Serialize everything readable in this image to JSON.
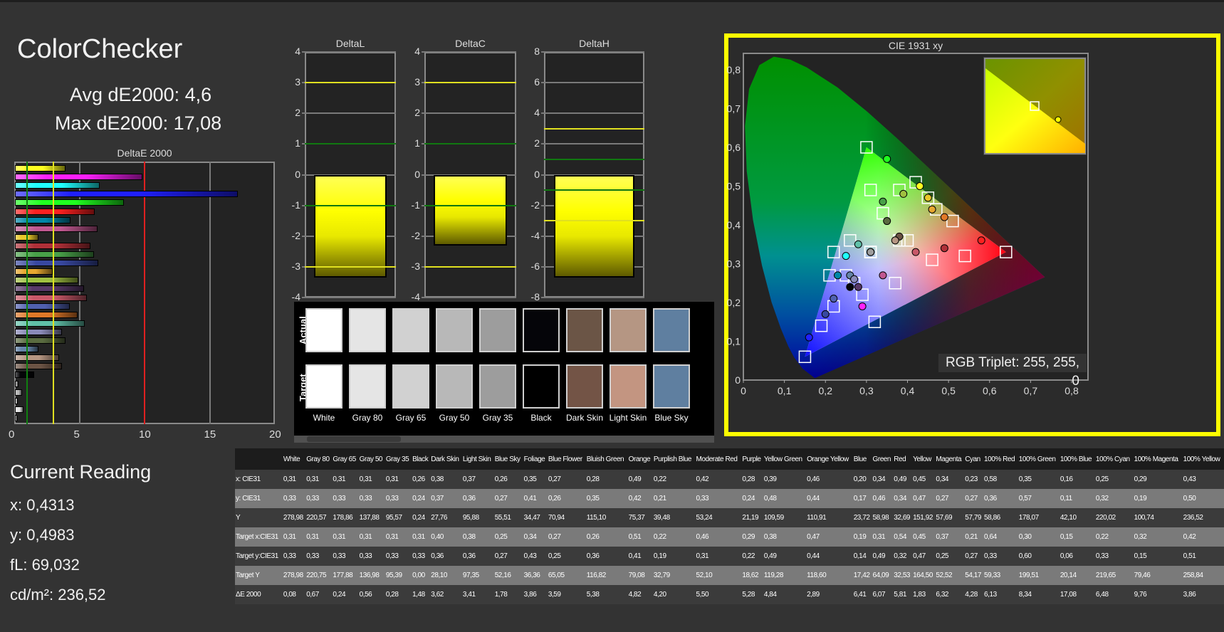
{
  "header": {
    "title": "ColorChecker",
    "avg": "Avg dE2000: 4,6",
    "max": "Max dE2000: 17,08"
  },
  "deltae_chart": {
    "title": "DeltaE 2000",
    "x_ticks": [
      "0",
      "5",
      "10",
      "15",
      "20"
    ],
    "xlim": [
      0,
      20
    ],
    "threshold_green": 1,
    "threshold_yellow": 3,
    "threshold_red": 10
  },
  "delta_charts": [
    {
      "title": "DeltaL",
      "value": -3.35,
      "ylim": [
        -4,
        4
      ],
      "ticks": [
        "4",
        "3",
        "2",
        "1",
        "0",
        "-1",
        "-2",
        "-3",
        "-4"
      ],
      "tick_values": [
        4,
        3,
        2,
        1,
        0,
        -1,
        -2,
        -3,
        -4
      ],
      "green": [
        1,
        -1
      ],
      "yellow": [
        3,
        -3
      ]
    },
    {
      "title": "DeltaC",
      "value": -2.3,
      "ylim": [
        -4,
        4
      ],
      "ticks": [
        "4",
        "3",
        "2",
        "1",
        "0",
        "-1",
        "-2",
        "-3",
        "-4"
      ],
      "tick_values": [
        4,
        3,
        2,
        1,
        0,
        -1,
        -2,
        -3,
        -4
      ],
      "green": [
        1,
        -1
      ],
      "yellow": [
        3,
        -3
      ]
    },
    {
      "title": "DeltaH",
      "value": -6.7,
      "ylim": [
        -8,
        8
      ],
      "ticks": [
        "8",
        "6",
        "4",
        "2",
        "0",
        "-2",
        "-4",
        "-6",
        "-8"
      ],
      "tick_values": [
        8,
        6,
        4,
        2,
        0,
        -2,
        -4,
        -6,
        -8
      ],
      "green": [
        1,
        -1
      ],
      "yellow": [
        3,
        -3
      ]
    }
  ],
  "swatches": {
    "actual_label": "Actual",
    "target_label": "Target",
    "items": [
      {
        "name": "White",
        "actual": "#ffffff",
        "target": "#ffffff"
      },
      {
        "name": "Gray 80",
        "actual": "#e5e5e5",
        "target": "#e5e5e5"
      },
      {
        "name": "Gray 65",
        "actual": "#d1d1d1",
        "target": "#d1d1d1"
      },
      {
        "name": "Gray 50",
        "actual": "#b8b8b8",
        "target": "#b8b8b8"
      },
      {
        "name": "Gray 35",
        "actual": "#9d9d9d",
        "target": "#9d9d9d"
      },
      {
        "name": "Black",
        "actual": "#050509",
        "target": "#000000"
      },
      {
        "name": "Dark Skin",
        "actual": "#6b5546",
        "target": "#735446"
      },
      {
        "name": "Light Skin",
        "actual": "#b59683",
        "target": "#c39581"
      },
      {
        "name": "Blue Sky",
        "actual": "#5f7fa0",
        "target": "#5f7fa0"
      }
    ]
  },
  "cie": {
    "title": "CIE 1931 xy",
    "x_ticks": [
      "0",
      "0,1",
      "0,2",
      "0,3",
      "0,4",
      "0,5",
      "0,6",
      "0,7",
      "0,8"
    ],
    "y_ticks": [
      "0",
      "0,1",
      "0,2",
      "0,3",
      "0,4",
      "0,5",
      "0,6",
      "0,7",
      "0,8"
    ],
    "xlim": [
      0,
      0.8
    ],
    "ylim": [
      0,
      0.8
    ],
    "gamut_primaries": [
      [
        0.64,
        0.33
      ],
      [
        0.3,
        0.6
      ],
      [
        0.15,
        0.06
      ]
    ],
    "rgb_triplet": "RGB Triplet: 255, 255, 0",
    "selected": "100% Yellow"
  },
  "current": {
    "title": "Current Reading",
    "x": "x: 0,4313",
    "y": "y: 0,4983",
    "fl": "fL: 69,032",
    "cdm2": "cd/m²: 236,52"
  },
  "table": {
    "columns": [
      "White",
      "Gray 80",
      "Gray 65",
      "Gray 50",
      "Gray 35",
      "Black",
      "Dark Skin",
      "Light Skin",
      "Blue Sky",
      "Foliage",
      "Blue Flower",
      "Bluish Green",
      "Orange",
      "Purplish Blue",
      "Moderate Red",
      "Purple",
      "Yellow Green",
      "Orange Yellow",
      "Blue",
      "Green",
      "Red",
      "Yellow",
      "Magenta",
      "Cyan",
      "100% Red",
      "100% Green",
      "100% Blue",
      "100% Cyan",
      "100% Magenta",
      "100% Yellow"
    ],
    "colors": [
      "#ffffff",
      "#e5e5e5",
      "#d0d0d0",
      "#b8b8b8",
      "#9e9e9e",
      "#050508",
      "#6b5344",
      "#b69682",
      "#6584a8",
      "#5a6b40",
      "#8a8ab8",
      "#60c0a8",
      "#e07828",
      "#5060b0",
      "#c85868",
      "#583868",
      "#a0c040",
      "#e8a830",
      "#3848a0",
      "#48a048",
      "#b03038",
      "#e8c828",
      "#c05890",
      "#0088a8",
      "#ff2020",
      "#20ff20",
      "#2020ff",
      "#20ffff",
      "#ff20ff",
      "#ffff20"
    ],
    "rows": [
      {
        "label": "x: CIE31",
        "values": [
          "0,31",
          "0,31",
          "0,31",
          "0,31",
          "0,31",
          "0,26",
          "0,38",
          "0,37",
          "0,26",
          "0,35",
          "0,27",
          "0,28",
          "0,49",
          "0,22",
          "0,42",
          "0,28",
          "0,39",
          "0,46",
          "0,20",
          "0,34",
          "0,49",
          "0,45",
          "0,34",
          "0,23",
          "0,58",
          "0,35",
          "0,16",
          "0,25",
          "0,29",
          "0,43"
        ]
      },
      {
        "label": "y: CIE31",
        "values": [
          "0,33",
          "0,33",
          "0,33",
          "0,33",
          "0,33",
          "0,24",
          "0,37",
          "0,36",
          "0,27",
          "0,41",
          "0,26",
          "0,35",
          "0,42",
          "0,21",
          "0,33",
          "0,24",
          "0,48",
          "0,44",
          "0,17",
          "0,46",
          "0,34",
          "0,47",
          "0,27",
          "0,27",
          "0,36",
          "0,57",
          "0,11",
          "0,32",
          "0,19",
          "0,50"
        ]
      },
      {
        "label": "Y",
        "values": [
          "278,98",
          "220,57",
          "178,86",
          "137,88",
          "95,57",
          "0,24",
          "27,76",
          "95,88",
          "55,51",
          "34,47",
          "70,94",
          "115,10",
          "75,37",
          "39,48",
          "53,24",
          "21,19",
          "109,59",
          "110,91",
          "23,72",
          "58,98",
          "32,69",
          "151,92",
          "57,69",
          "57,79",
          "58,86",
          "178,07",
          "42,10",
          "220,02",
          "100,74",
          "236,52"
        ]
      },
      {
        "label": "Target x:CIE31",
        "values": [
          "0,31",
          "0,31",
          "0,31",
          "0,31",
          "0,31",
          "0,31",
          "0,40",
          "0,38",
          "0,25",
          "0,34",
          "0,27",
          "0,26",
          "0,51",
          "0,22",
          "0,46",
          "0,29",
          "0,38",
          "0,47",
          "0,19",
          "0,31",
          "0,54",
          "0,45",
          "0,37",
          "0,21",
          "0,64",
          "0,30",
          "0,15",
          "0,22",
          "0,32",
          "0,42"
        ]
      },
      {
        "label": "Target y:CIE31",
        "values": [
          "0,33",
          "0,33",
          "0,33",
          "0,33",
          "0,33",
          "0,33",
          "0,36",
          "0,36",
          "0,27",
          "0,43",
          "0,25",
          "0,36",
          "0,41",
          "0,19",
          "0,31",
          "0,22",
          "0,49",
          "0,44",
          "0,14",
          "0,49",
          "0,32",
          "0,47",
          "0,25",
          "0,27",
          "0,33",
          "0,60",
          "0,06",
          "0,33",
          "0,15",
          "0,51"
        ]
      },
      {
        "label": "Target Y",
        "values": [
          "278,98",
          "220,75",
          "177,88",
          "136,98",
          "95,39",
          "0,00",
          "28,10",
          "97,35",
          "52,16",
          "36,36",
          "65,05",
          "116,82",
          "79,08",
          "32,79",
          "52,10",
          "18,62",
          "119,28",
          "118,60",
          "17,42",
          "64,09",
          "32,53",
          "164,50",
          "52,52",
          "54,17",
          "59,33",
          "199,51",
          "20,14",
          "219,65",
          "79,46",
          "258,84"
        ]
      },
      {
        "label": "ΔE 2000",
        "values": [
          "0,08",
          "0,67",
          "0,24",
          "0,56",
          "0,28",
          "1,48",
          "3,62",
          "3,41",
          "1,78",
          "3,86",
          "3,59",
          "5,38",
          "4,82",
          "4,20",
          "5,50",
          "5,28",
          "4,84",
          "2,89",
          "6,41",
          "6,07",
          "5,81",
          "1,83",
          "6,32",
          "4,28",
          "6,13",
          "8,34",
          "17,08",
          "6,48",
          "9,76",
          "3,86"
        ]
      }
    ]
  }
}
